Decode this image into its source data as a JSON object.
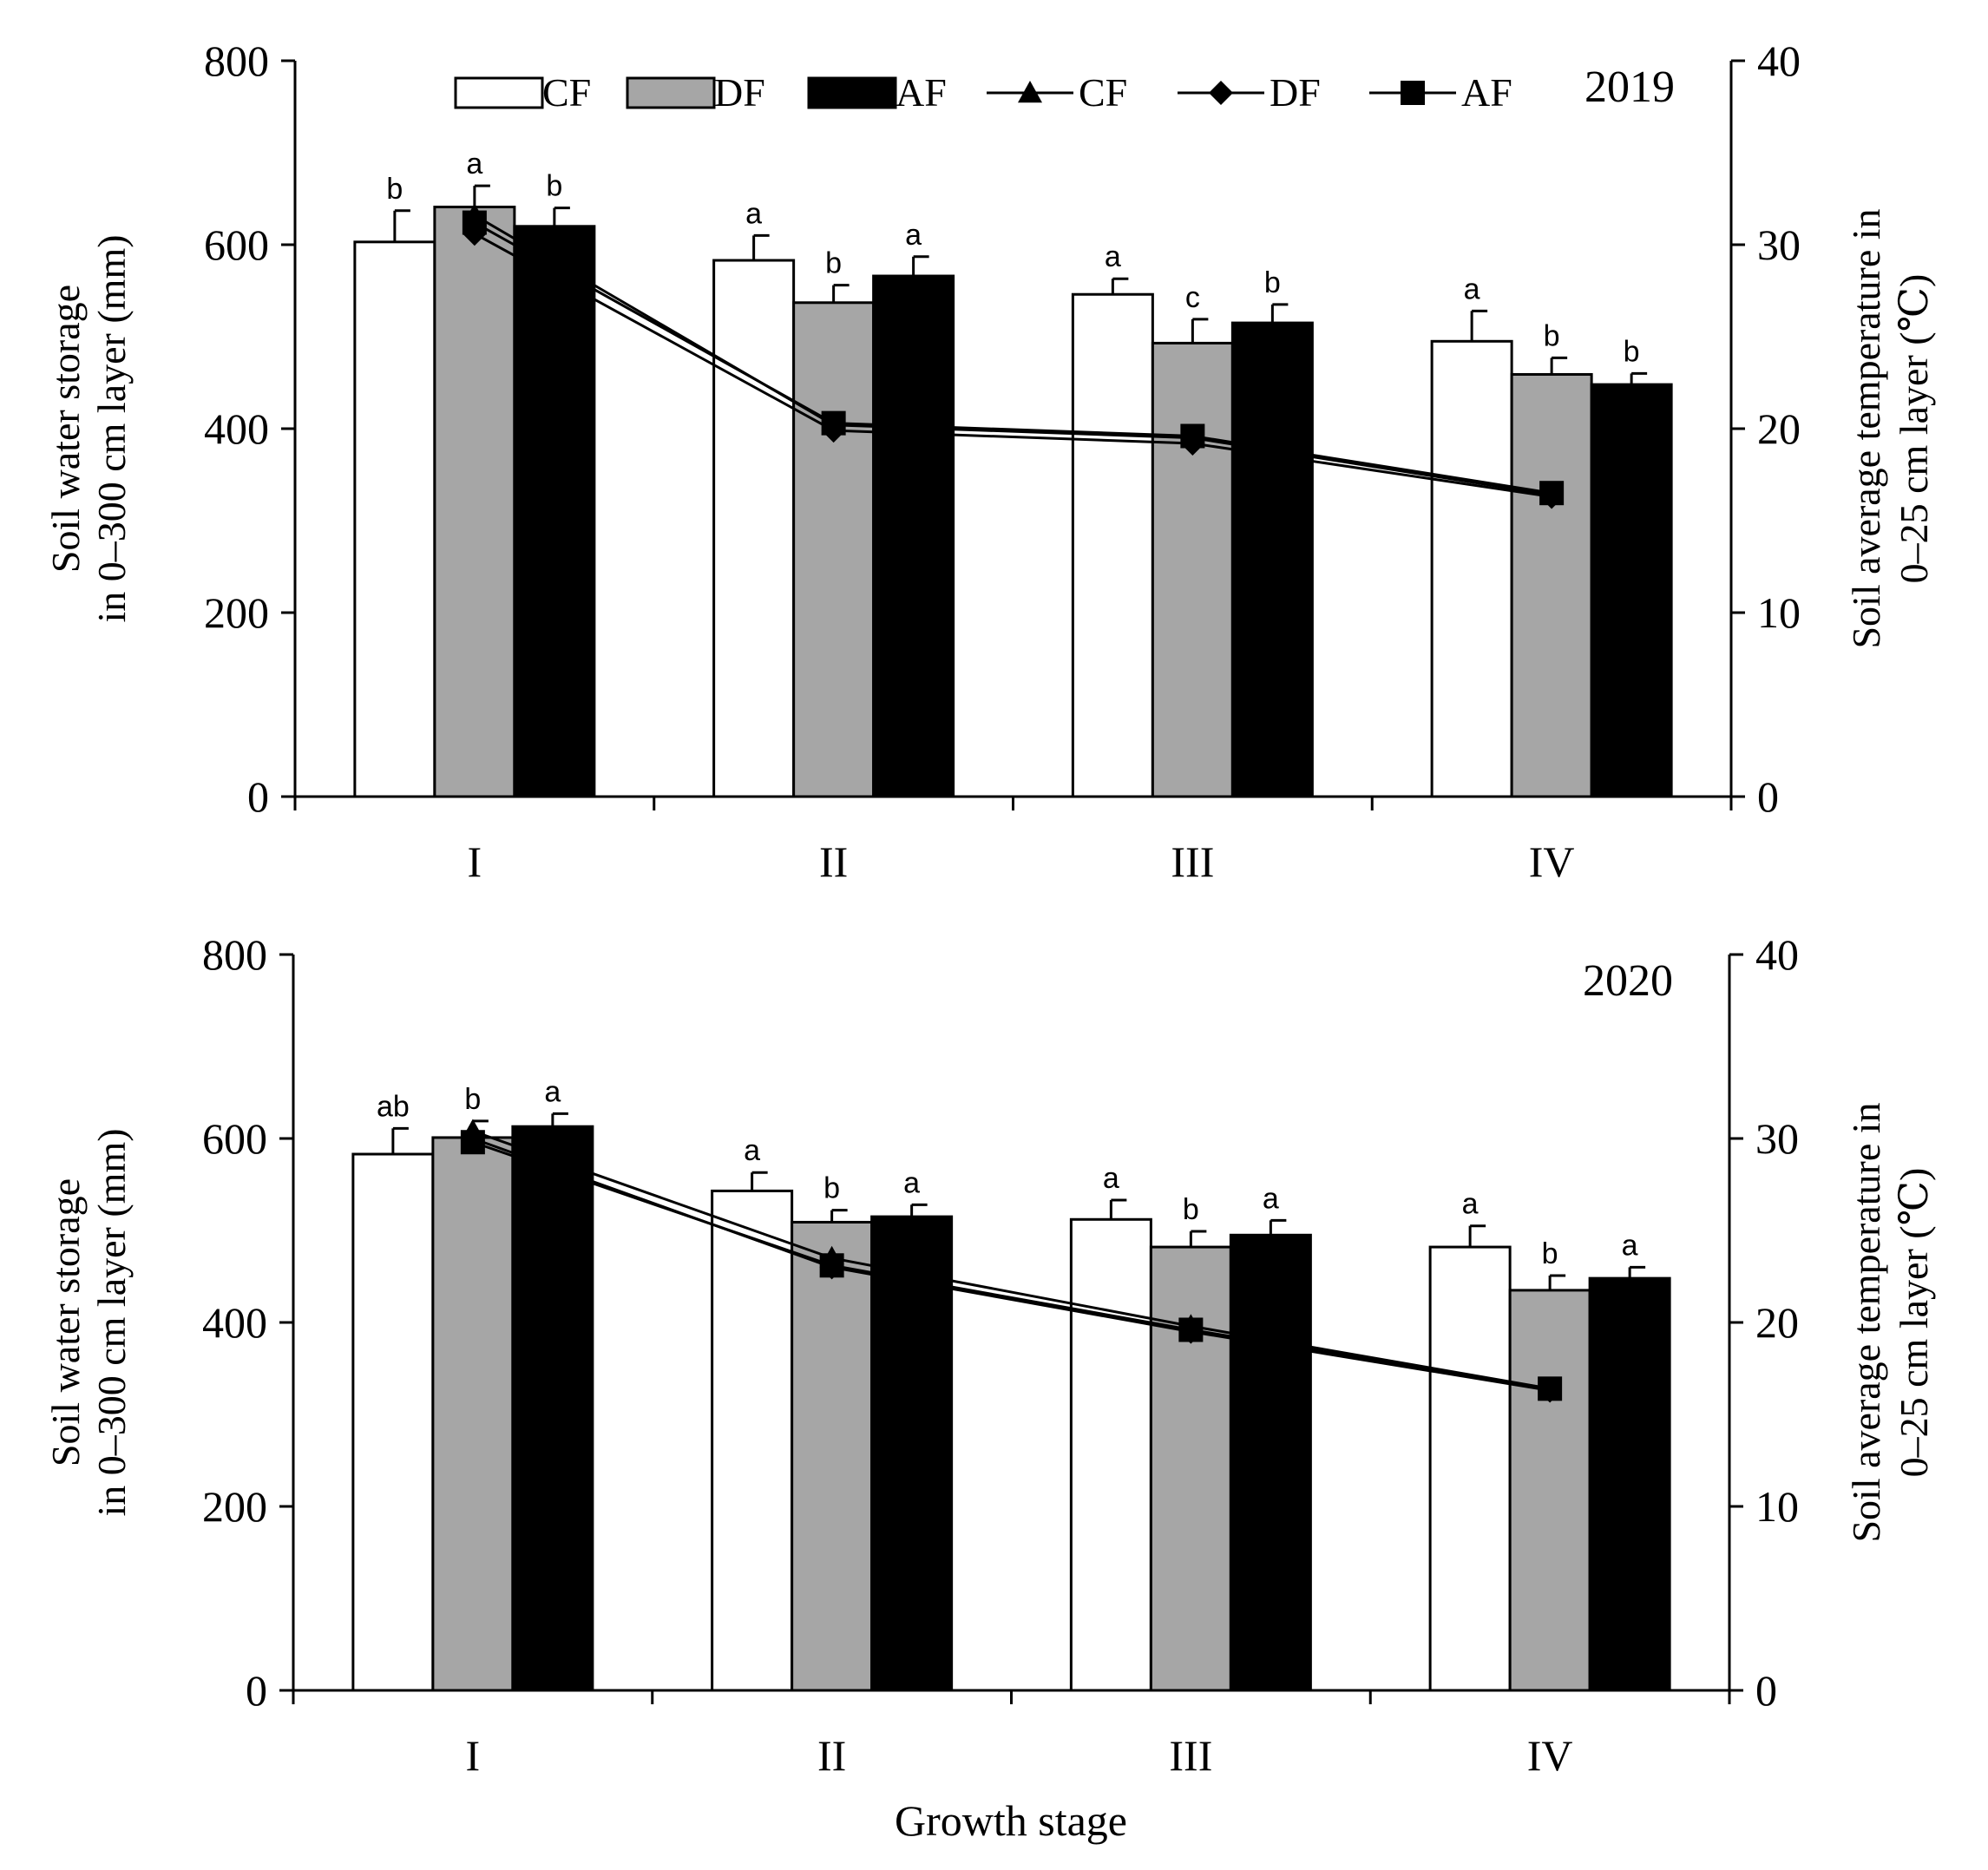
{
  "colors": {
    "CF": "#ffffff",
    "DF": "#a6a6a6",
    "AF": "#000000",
    "axis": "#000000"
  },
  "legend": {
    "bars": [
      "CF",
      "DF",
      "AF"
    ],
    "lines": [
      {
        "label": "CF",
        "marker": "triangle"
      },
      {
        "label": "DF",
        "marker": "diamond"
      },
      {
        "label": "AF",
        "marker": "square"
      }
    ]
  },
  "x_axis_label": "Growth stage",
  "chart_data": [
    {
      "type": "bar",
      "title": "2019",
      "categories": [
        "I",
        "II",
        "III",
        "IV"
      ],
      "xlabel": "",
      "ylabel_lines": [
        "Soil water storage",
        "in 0–300 cm layer (mm)"
      ],
      "y2label_lines": [
        "Soil average temperature in",
        "0–25 cm layer (℃)"
      ],
      "ylim": [
        0,
        800
      ],
      "yticks": [
        0,
        200,
        400,
        600,
        800
      ],
      "y2lim": [
        0,
        40
      ],
      "y2ticks": [
        0,
        10,
        20,
        30,
        40
      ],
      "series": [
        {
          "name": "CF",
          "values": [
            603,
            583,
            546,
            495
          ],
          "errors": [
            34,
            27,
            17,
            33
          ],
          "letters": [
            "b",
            "a",
            "a",
            "a"
          ]
        },
        {
          "name": "DF",
          "values": [
            641,
            537,
            493,
            459
          ],
          "errors": [
            23,
            19,
            26,
            18
          ],
          "letters": [
            "a",
            "b",
            "c",
            "b"
          ]
        },
        {
          "name": "AF",
          "values": [
            620,
            566,
            515,
            448
          ],
          "errors": [
            20,
            21,
            20,
            12
          ],
          "letters": [
            "b",
            "a",
            "b",
            "b"
          ]
        }
      ],
      "line_series": [
        {
          "name": "CF",
          "marker": "triangle",
          "values": [
            31.6,
            20.2,
            19.5,
            16.4
          ]
        },
        {
          "name": "DF",
          "marker": "diamond",
          "values": [
            30.6,
            19.9,
            19.2,
            16.3
          ]
        },
        {
          "name": "AF",
          "marker": "square",
          "values": [
            31.2,
            20.3,
            19.6,
            16.5
          ]
        }
      ]
    },
    {
      "type": "bar",
      "title": "2020",
      "categories": [
        "I",
        "II",
        "III",
        "IV"
      ],
      "xlabel": "Growth stage",
      "ylabel_lines": [
        "Soil water storage",
        "in 0–300 cm layer (mm)"
      ],
      "y2label_lines": [
        "Soil average temperature in",
        "0–25 cm layer (℃)"
      ],
      "ylim": [
        0,
        800
      ],
      "yticks": [
        0,
        200,
        400,
        600,
        800
      ],
      "y2lim": [
        0,
        40
      ],
      "y2ticks": [
        0,
        10,
        20,
        30,
        40
      ],
      "series": [
        {
          "name": "CF",
          "values": [
            583,
            543,
            512,
            482
          ],
          "errors": [
            28,
            20,
            21,
            23
          ],
          "letters": [
            "ab",
            "a",
            "a",
            "a"
          ]
        },
        {
          "name": "DF",
          "values": [
            601,
            509,
            482,
            435
          ],
          "errors": [
            18,
            13,
            17,
            16
          ],
          "letters": [
            "b",
            "b",
            "b",
            "b"
          ]
        },
        {
          "name": "AF",
          "values": [
            613,
            515,
            495,
            448
          ],
          "errors": [
            14,
            13,
            16,
            12
          ],
          "letters": [
            "a",
            "a",
            "a",
            "a"
          ]
        }
      ],
      "line_series": [
        {
          "name": "CF",
          "marker": "triangle",
          "values": [
            30.4,
            23.5,
            19.8,
            16.4
          ]
        },
        {
          "name": "DF",
          "marker": "diamond",
          "values": [
            30.0,
            23.0,
            19.5,
            16.3
          ]
        },
        {
          "name": "AF",
          "marker": "square",
          "values": [
            29.8,
            23.1,
            19.6,
            16.4
          ]
        }
      ]
    }
  ]
}
